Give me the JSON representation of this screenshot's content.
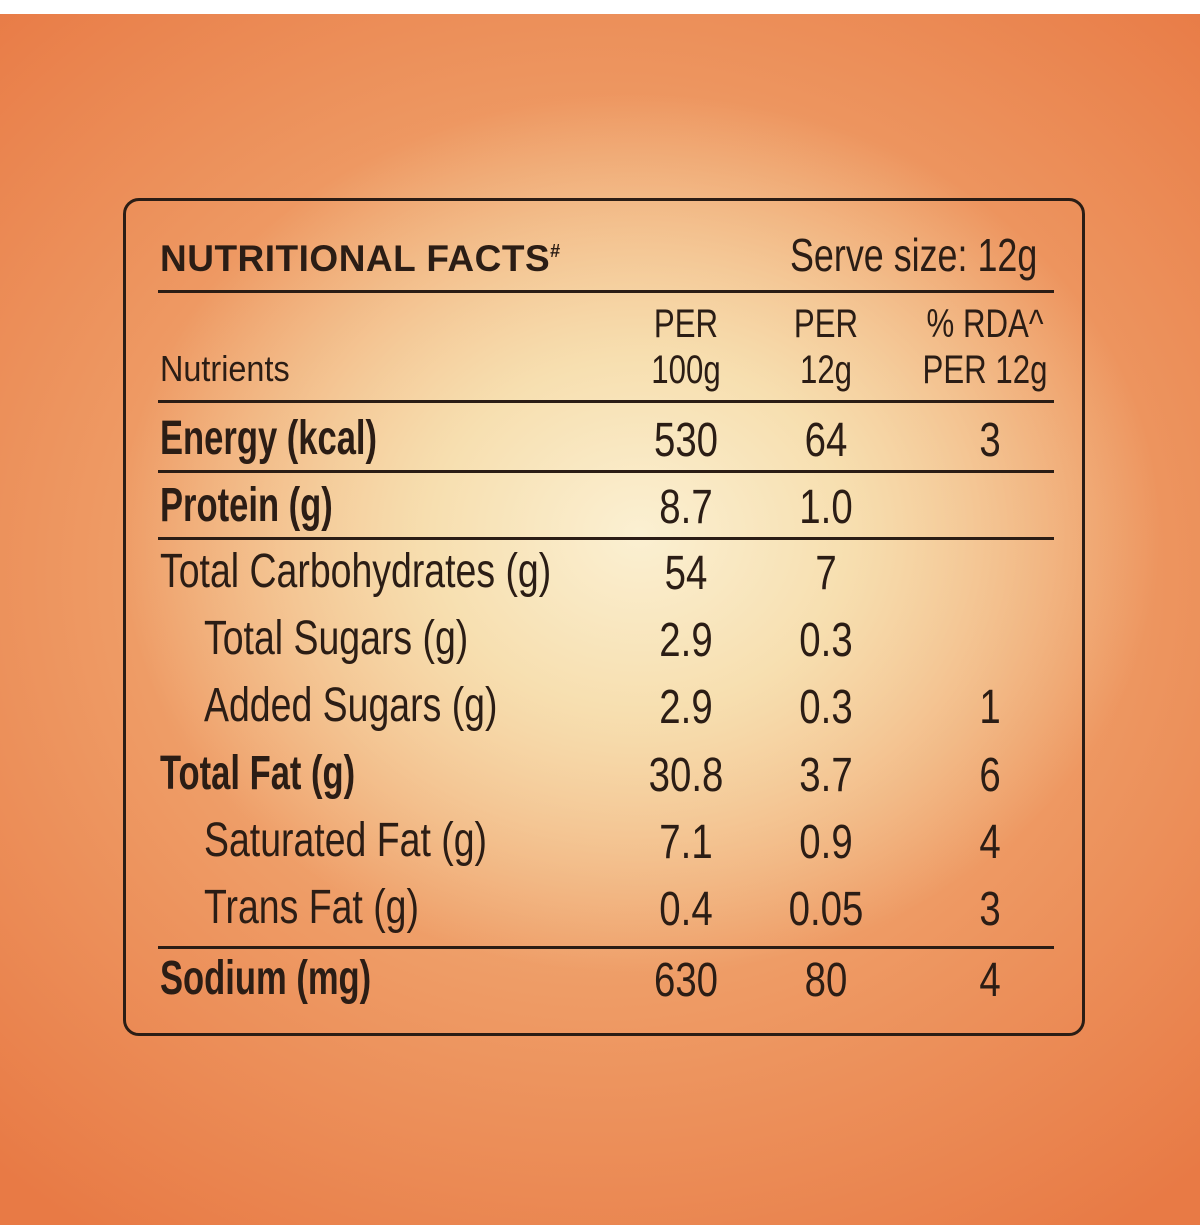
{
  "panel": {
    "title": "NUTRITIONAL FACTS",
    "title_mark": "#",
    "serve_size": "Serve size: 12g"
  },
  "columns": {
    "nutrients": "Nutrients",
    "per100_line1": "PER",
    "per100_line2": "100g",
    "per12_line1": "PER",
    "per12_line2": "12g",
    "rda_line1": "% RDA^",
    "rda_line2": "PER 12g"
  },
  "rows": [
    {
      "name": "Energy (kcal)",
      "per100": "530",
      "per12": "64",
      "rda": "3"
    },
    {
      "name": "Protein (g)",
      "per100": "8.7",
      "per12": "1.0",
      "rda": ""
    },
    {
      "name": "Total Carbohydrates (g)",
      "per100": "54",
      "per12": "7",
      "rda": ""
    },
    {
      "name": "Total Sugars (g)",
      "per100": "2.9",
      "per12": "0.3",
      "rda": ""
    },
    {
      "name": "Added Sugars (g)",
      "per100": "2.9",
      "per12": "0.3",
      "rda": "1"
    },
    {
      "name": "Total Fat (g)",
      "per100": "30.8",
      "per12": "3.7",
      "rda": "6"
    },
    {
      "name": "Saturated Fat (g)",
      "per100": "7.1",
      "per12": "0.9",
      "rda": "4"
    },
    {
      "name": "Trans Fat (g)",
      "per100": "0.4",
      "per12": "0.05",
      "rda": "3"
    },
    {
      "name": "Sodium (mg)",
      "per100": "630",
      "per12": "80",
      "rda": "4"
    }
  ]
}
